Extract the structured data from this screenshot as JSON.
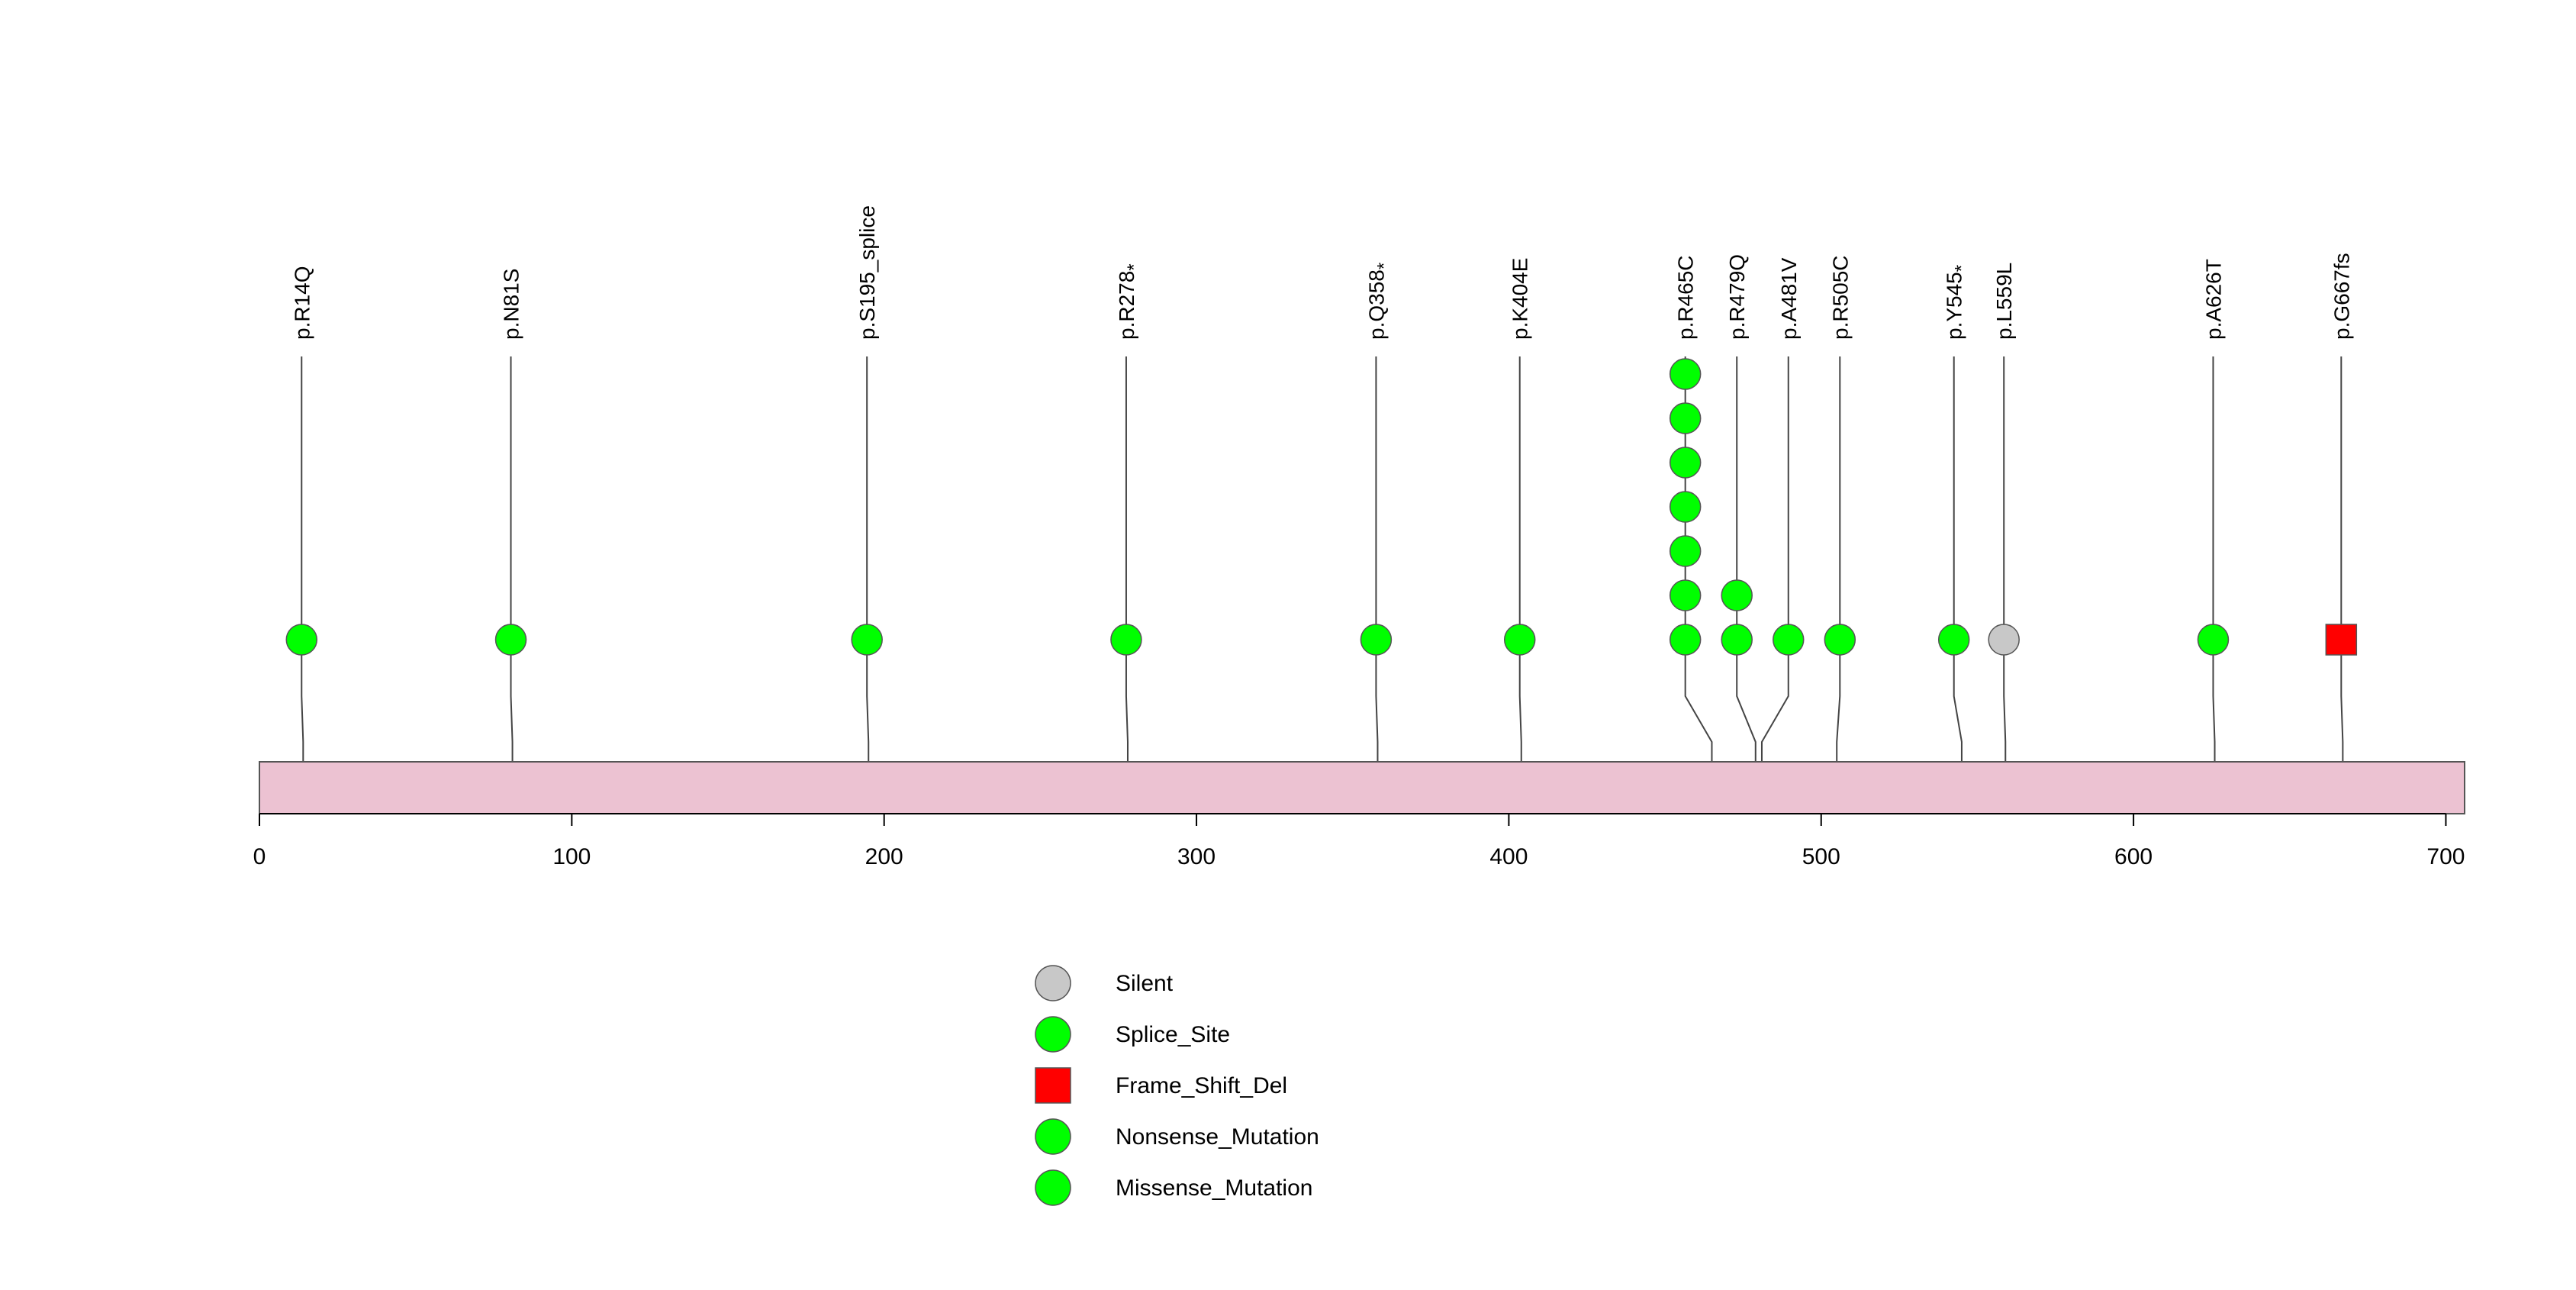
{
  "chart_data": {
    "type": "lollipop",
    "title": "",
    "xlabel": "",
    "ylabel": "",
    "xlim": [
      0,
      706
    ],
    "x_ticks": [
      0,
      100,
      200,
      300,
      400,
      500,
      600,
      700
    ],
    "protein_length": 706,
    "mutations": [
      {
        "label": "p.R14Q",
        "position": 14,
        "stem_x": 13.5,
        "count": 1,
        "type": "Missense_Mutation"
      },
      {
        "label": "p.N81S",
        "position": 81,
        "stem_x": 80.5,
        "count": 1,
        "type": "Missense_Mutation"
      },
      {
        "label": "p.S195_splice",
        "position": 195,
        "stem_x": 194.5,
        "count": 1,
        "type": "Splice_Site"
      },
      {
        "label": "p.R278",
        "suffix": "*",
        "position": 278,
        "stem_x": 277.5,
        "count": 1,
        "type": "Nonsense_Mutation"
      },
      {
        "label": "p.Q358",
        "suffix": "*",
        "position": 358,
        "stem_x": 357.5,
        "count": 1,
        "type": "Nonsense_Mutation"
      },
      {
        "label": "p.K404E",
        "position": 404,
        "stem_x": 403.5,
        "count": 1,
        "type": "Missense_Mutation"
      },
      {
        "label": "p.R465C",
        "position": 465,
        "stem_x": 456.5,
        "count": 7,
        "type": "Missense_Mutation"
      },
      {
        "label": "p.R479Q",
        "position": 479,
        "stem_x": 473,
        "count": 2,
        "type": "Missense_Mutation"
      },
      {
        "label": "p.A481V",
        "position": 481,
        "stem_x": 489.5,
        "count": 1,
        "type": "Missense_Mutation"
      },
      {
        "label": "p.R505C",
        "position": 505,
        "stem_x": 506,
        "count": 1,
        "type": "Missense_Mutation"
      },
      {
        "label": "p.Y545",
        "suffix": "*",
        "position": 545,
        "stem_x": 542.5,
        "count": 1,
        "type": "Nonsense_Mutation"
      },
      {
        "label": "p.L559L",
        "position": 559,
        "stem_x": 558.5,
        "count": 1,
        "type": "Silent"
      },
      {
        "label": "p.A626T",
        "position": 626,
        "stem_x": 625.5,
        "count": 1,
        "type": "Missense_Mutation"
      },
      {
        "label": "p.G667fs",
        "position": 667,
        "stem_x": 666.5,
        "count": 1,
        "type": "Frame_Shift_Del"
      }
    ],
    "legend": [
      {
        "label": "Silent",
        "shape": "circle",
        "color": "#c8c8c8"
      },
      {
        "label": "Splice_Site",
        "shape": "circle",
        "color": "#00ff00"
      },
      {
        "label": "Frame_Shift_Del",
        "shape": "square",
        "color": "#ff0000"
      },
      {
        "label": "Nonsense_Mutation",
        "shape": "circle",
        "color": "#00ff00"
      },
      {
        "label": "Missense_Mutation",
        "shape": "circle",
        "color": "#00ff00"
      }
    ],
    "colors": {
      "Silent": "#c8c8c8",
      "Splice_Site": "#00ff00",
      "Frame_Shift_Del": "#ff0000",
      "Nonsense_Mutation": "#00ff00",
      "Missense_Mutation": "#00ff00",
      "protein_bar": "#ecc2d2"
    }
  }
}
